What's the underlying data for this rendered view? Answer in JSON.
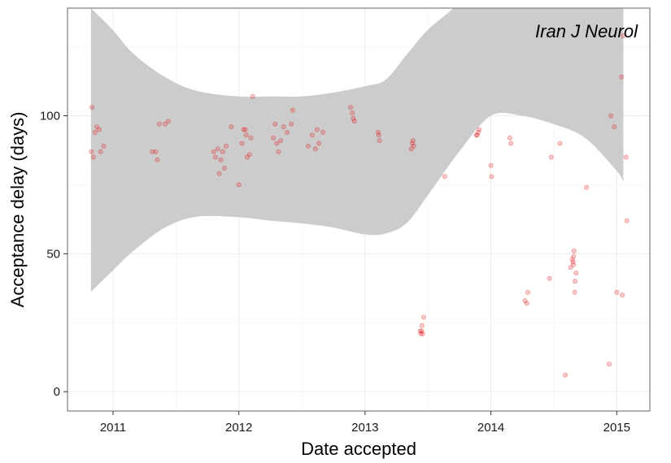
{
  "chart_data": {
    "type": "scatter",
    "title": "",
    "annotation": "Iran J Neurol",
    "xlabel": "Date accepted",
    "ylabel": "Acceptance delay (days)",
    "x_tick_labels": [
      "2011",
      "2012",
      "2013",
      "2014",
      "2015"
    ],
    "y_tick_labels": [
      "0",
      "50",
      "100"
    ],
    "y_ticks": [
      0,
      50,
      100
    ],
    "xlim": [
      "2010-08-22",
      "2015-04-07"
    ],
    "ylim": [
      -7,
      139
    ],
    "grid": true,
    "smooth_band": true,
    "colors": {
      "point": "#e31a1c",
      "band": "#cccccc",
      "grid": "#ebebeb",
      "border": "#7f7f7f"
    },
    "smoothing_band": {
      "x": [
        "2010-10-29",
        "2011-01-01",
        "2011-03-01",
        "2011-06-01",
        "2011-09-01",
        "2012-01-01",
        "2012-04-01",
        "2012-07-01",
        "2012-10-01",
        "2013-01-01",
        "2013-03-01",
        "2013-05-01",
        "2013-07-01",
        "2013-10-01",
        "2014-01-01",
        "2014-04-01",
        "2014-07-01",
        "2014-10-01",
        "2015-01-01",
        "2015-01-20"
      ],
      "lower": [
        36.2,
        44,
        51,
        59.5,
        63.4,
        63.2,
        62,
        61,
        59.5,
        57,
        57.3,
        61,
        71,
        87,
        100,
        100,
        97,
        92,
        80,
        76
      ],
      "upper": [
        139,
        131,
        122.5,
        114,
        109,
        107,
        107,
        107,
        108.4,
        110.7,
        113,
        122,
        131,
        141,
        155,
        165,
        157,
        142,
        139,
        139
      ]
    },
    "series": [
      {
        "x": [
          "2010-10-30",
          "2010-11-01",
          "2010-11-05",
          "2010-11-10",
          "2010-11-15",
          "2010-11-22",
          "2010-11-26",
          "2010-12-05",
          "2011-04-25",
          "2011-05-05",
          "2011-05-10",
          "2011-05-15",
          "2011-06-01",
          "2011-06-10",
          "2011-10-20",
          "2011-10-25",
          "2011-11-01",
          "2011-11-05",
          "2011-11-10",
          "2011-11-15",
          "2011-11-20",
          "2011-11-25",
          "2011-12-10",
          "2012-01-01",
          "2012-01-10",
          "2012-01-15",
          "2012-01-20",
          "2012-01-22",
          "2012-01-25",
          "2012-02-01",
          "2012-02-05",
          "2012-02-10",
          "2012-04-10",
          "2012-04-15",
          "2012-04-20",
          "2012-04-25",
          "2012-05-01",
          "2012-05-10",
          "2012-05-20",
          "2012-06-01",
          "2012-06-05",
          "2012-07-20",
          "2012-08-01",
          "2012-08-10",
          "2012-08-15",
          "2012-08-20",
          "2012-09-01",
          "2012-11-20",
          "2012-11-25",
          "2012-11-28",
          "2012-12-01",
          "2013-02-08",
          "2013-02-10",
          "2013-02-12",
          "2013-05-15",
          "2013-05-18",
          "2013-05-20",
          "2013-05-22",
          "2013-06-10",
          "2013-06-12",
          "2013-06-14",
          "2013-06-15",
          "2013-06-17",
          "2013-06-20",
          "2013-08-20",
          "2013-11-20",
          "2013-11-22",
          "2013-11-25",
          "2013-11-28",
          "2014-01-01",
          "2014-01-03",
          "2014-02-25",
          "2014-02-28",
          "2014-04-10",
          "2014-04-15",
          "2014-04-18",
          "2014-06-20",
          "2014-06-25",
          "2014-07-20",
          "2014-08-05",
          "2014-08-20",
          "2014-08-25",
          "2014-08-27",
          "2014-08-28",
          "2014-08-29",
          "2014-08-30",
          "2014-09-01",
          "2014-09-02",
          "2014-09-05",
          "2014-10-05",
          "2014-12-10",
          "2014-12-15",
          "2014-12-25",
          "2015-01-01",
          "2015-01-15",
          "2015-01-17",
          "2015-01-20",
          "2015-01-28",
          "2015-01-30"
        ],
        "y": [
          87,
          103,
          85,
          94,
          96,
          95,
          87,
          89,
          87,
          87,
          84,
          97,
          97,
          98,
          87,
          85,
          88,
          79,
          84,
          87,
          81,
          89,
          96,
          75,
          90,
          95,
          95,
          93,
          85,
          86,
          92,
          107,
          92,
          97,
          90,
          87,
          91,
          96,
          94,
          97,
          102,
          89,
          93,
          88,
          95,
          90,
          94,
          103,
          101,
          99,
          98,
          94,
          93,
          91,
          88,
          90,
          91,
          89,
          22,
          21,
          22,
          24,
          21,
          27,
          78,
          93,
          93,
          94,
          95,
          82,
          78,
          92,
          90,
          33,
          32,
          36,
          41,
          85,
          90,
          6,
          45,
          48,
          47,
          46,
          49,
          51,
          36,
          40,
          43,
          74,
          10,
          100,
          96,
          36,
          114,
          35,
          129,
          85,
          62
        ]
      }
    ]
  }
}
